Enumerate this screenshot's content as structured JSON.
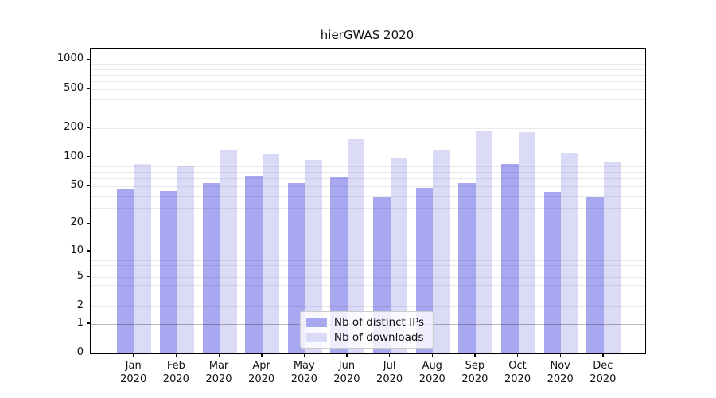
{
  "chart_data": {
    "type": "bar",
    "title": "hierGWAS 2020",
    "categories": [
      "Jan",
      "Feb",
      "Mar",
      "Apr",
      "May",
      "Jun",
      "Jul",
      "Aug",
      "Sep",
      "Oct",
      "Nov",
      "Dec"
    ],
    "category_year": "2020",
    "series": [
      {
        "name": "Nb of distinct IPs",
        "color": "#a8a8f0",
        "values": [
          47,
          45,
          54,
          64,
          54,
          63,
          39,
          48,
          54,
          85,
          44,
          39
        ]
      },
      {
        "name": "Nb of downloads",
        "color": "#dbdbf7",
        "values": [
          85,
          80,
          120,
          107,
          93,
          155,
          100,
          118,
          185,
          182,
          110,
          88
        ]
      }
    ],
    "yscale": "log1p",
    "yticks": [
      0,
      1,
      2,
      5,
      10,
      20,
      50,
      100,
      200,
      500,
      1000
    ],
    "major_ticks": [
      1,
      10,
      100,
      1000
    ],
    "ylim": [
      0,
      1300
    ],
    "grid": true,
    "legend_position": "lower center",
    "colors": {
      "grid_major": "rgba(0,0,0,0.27)",
      "grid_minor": "rgba(0,0,0,0.08)",
      "axis": "#000000",
      "text": "#111111"
    }
  }
}
